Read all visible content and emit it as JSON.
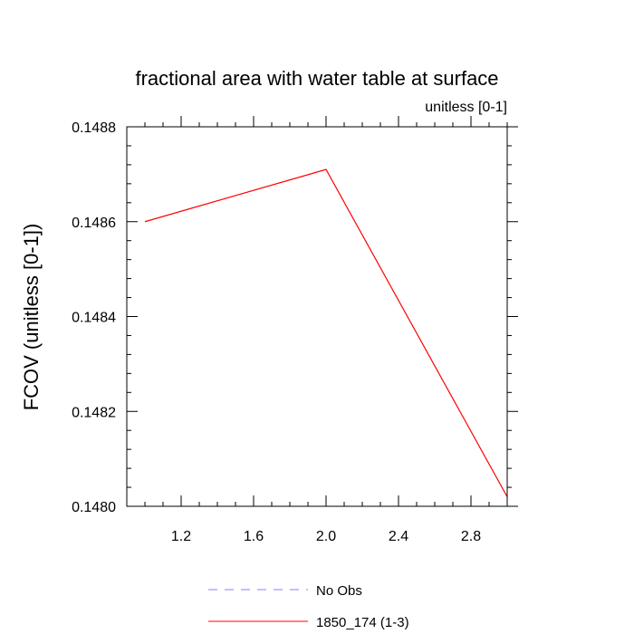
{
  "chart_data": {
    "type": "line",
    "title": "fractional area with water table at surface",
    "subtitle": "unitless [0-1]",
    "ylabel": "FCOV  (unitless [0-1])",
    "xlabel": "",
    "xlim": [
      0.9,
      3.0
    ],
    "ylim": [
      0.148,
      0.1488
    ],
    "x_ticks": [
      1.2,
      1.6,
      2.0,
      2.4,
      2.8
    ],
    "x_tick_labels": [
      "1.2",
      "1.6",
      "2.0",
      "2.4",
      "2.8"
    ],
    "y_ticks": [
      0.148,
      0.1482,
      0.1484,
      0.1486,
      0.1488
    ],
    "y_tick_labels": [
      "0.1480",
      "0.1482",
      "0.1484",
      "0.1486",
      "0.1488"
    ],
    "grid": false,
    "legend_position": "bottom-center",
    "series": [
      {
        "name": "1850_174 (1-3)",
        "color": "#ff0000",
        "dash": "solid",
        "x": [
          1.0,
          2.0,
          3.0
        ],
        "y": [
          0.1486,
          0.14871,
          0.14802
        ]
      }
    ],
    "legend": [
      {
        "label": "No Obs",
        "color": "#8080ff",
        "dash": "dashed"
      },
      {
        "label": "1850_174 (1-3)",
        "color": "#ff0000",
        "dash": "solid"
      }
    ]
  }
}
